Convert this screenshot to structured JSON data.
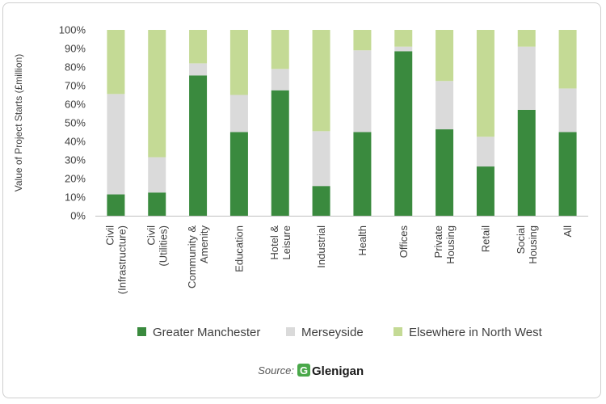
{
  "chart_data": {
    "type": "bar",
    "stacked": true,
    "ylabel": "Value of Project Starts (£million)",
    "xlabel": "",
    "ylim": [
      0,
      100
    ],
    "y_ticks": [
      "0%",
      "10%",
      "20%",
      "30%",
      "40%",
      "50%",
      "60%",
      "70%",
      "80%",
      "90%",
      "100%"
    ],
    "categories": [
      [
        "Civil",
        "(Infrastructure)"
      ],
      [
        "Civil",
        "(Utilities)"
      ],
      [
        "Community &",
        "Amenity"
      ],
      [
        "Education"
      ],
      [
        "Hotel &",
        "Leisure"
      ],
      [
        "Industrial"
      ],
      [
        "Health"
      ],
      [
        "Offices"
      ],
      [
        "Private",
        "Housing"
      ],
      [
        "Retail"
      ],
      [
        "Social",
        "Housing"
      ],
      [
        "All"
      ]
    ],
    "series": [
      {
        "name": "Greater Manchester",
        "color": "#3a8a3e",
        "values": [
          11.5,
          12.5,
          75.5,
          45,
          67.5,
          16,
          45,
          88.5,
          46.5,
          26.5,
          57,
          45
        ]
      },
      {
        "name": "Merseyside",
        "color": "#dadada",
        "values": [
          54,
          19,
          6.5,
          20,
          11.5,
          29.5,
          44,
          2.5,
          26,
          16,
          34,
          23.5
        ]
      },
      {
        "name": "Elsewhere in North West",
        "color": "#c4da95",
        "values": [
          34.5,
          68.5,
          18,
          35,
          21,
          54.5,
          11,
          9,
          27.5,
          57.5,
          9,
          31.5
        ]
      }
    ],
    "legend_position": "bottom",
    "grid": false
  },
  "source": {
    "label": "Source:",
    "brand_mark": "G",
    "brand_name": "Glenigan"
  }
}
